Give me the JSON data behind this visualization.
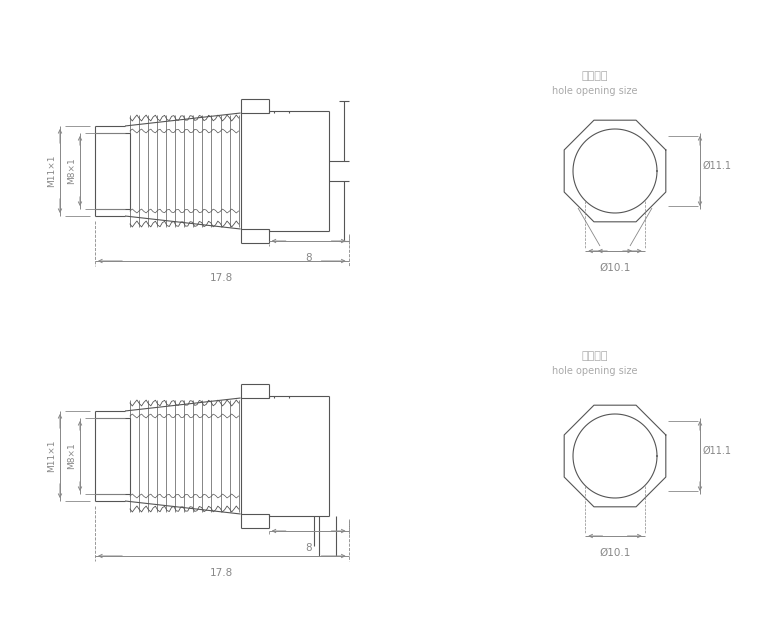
{
  "bg_color": "#ffffff",
  "line_color": "#555555",
  "dim_color": "#888888",
  "text_color": "#888888",
  "chinese_label1": "开孔尺寸",
  "english_label1": "hole opening size",
  "dim_17_8": "17.8",
  "dim_8": "8",
  "dim_11_1": "Ø11.1",
  "dim_10_1": "Ø10.1",
  "label_m11": "M11×1",
  "label_m8": "M8×1"
}
